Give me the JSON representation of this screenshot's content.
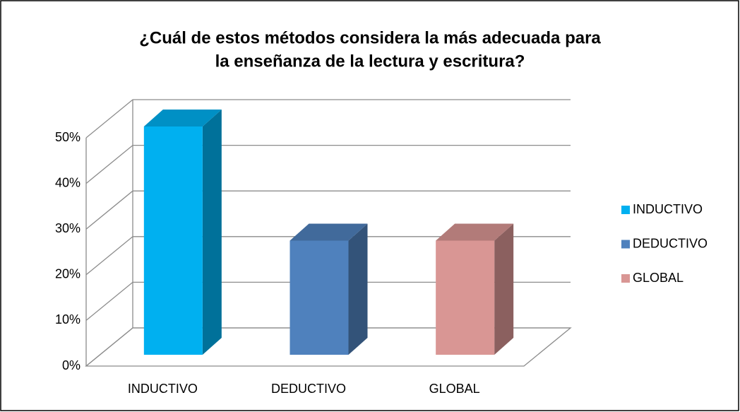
{
  "chart_data": {
    "type": "bar3d",
    "title": [
      "¿Cuál de estos métodos considera la más adecuada para",
      "la enseñanza de la lectura y escritura?"
    ],
    "categories": [
      "INDUCTIVO",
      "DEDUCTIVO",
      "GLOBAL"
    ],
    "values": [
      50,
      25,
      25
    ],
    "colors": [
      "#00b0f0",
      "#4f81bd",
      "#d99694"
    ],
    "ylim": [
      0,
      50
    ],
    "yticks": [
      {
        "value": 0,
        "label": "0%"
      },
      {
        "value": 10,
        "label": "10%"
      },
      {
        "value": 20,
        "label": "20%"
      },
      {
        "value": 30,
        "label": "30%"
      },
      {
        "value": 40,
        "label": "40%"
      },
      {
        "value": 50,
        "label": "50%"
      }
    ],
    "grid": true,
    "legend": "right"
  }
}
